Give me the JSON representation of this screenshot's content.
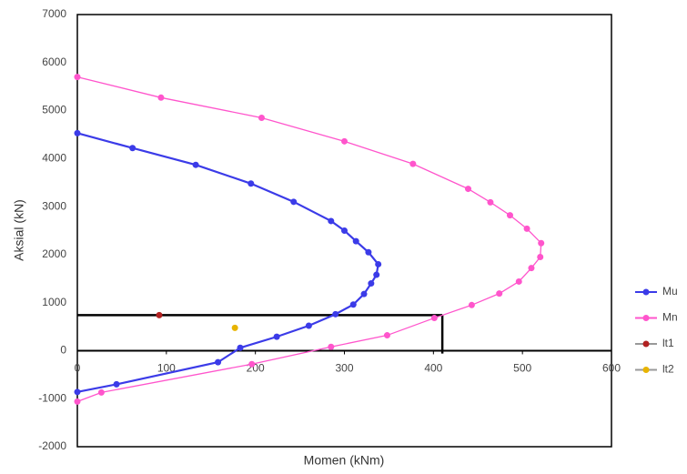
{
  "chart_data": {
    "type": "scatter-line",
    "x_label": "Momen (kNm)",
    "y_label": "Aksial (kN)",
    "xlim": [
      0,
      600
    ],
    "xticks": [
      0,
      100,
      200,
      300,
      400,
      500,
      600
    ],
    "ylim": [
      -2000,
      7000
    ],
    "yticks": [
      -2000,
      -1000,
      0,
      1000,
      2000,
      3000,
      4000,
      5000,
      6000,
      7000
    ],
    "grid": false,
    "legend": "right",
    "series": [
      {
        "name": "Mu",
        "color": "#3b3be8",
        "line": true,
        "x": [
          0,
          62,
          133,
          195,
          243,
          285,
          300,
          313,
          327,
          338,
          336,
          330,
          322,
          310,
          290,
          260,
          224,
          183,
          158,
          44,
          0
        ],
        "y": [
          4530,
          4220,
          3870,
          3480,
          3100,
          2700,
          2500,
          2280,
          2050,
          1800,
          1580,
          1400,
          1180,
          960,
          760,
          520,
          290,
          60,
          -240,
          -700,
          -860
        ]
      },
      {
        "name": "Mn",
        "color": "#ff55cc",
        "line": true,
        "x": [
          0,
          94,
          207,
          300,
          377,
          439,
          464,
          486,
          505,
          521,
          520,
          510,
          496,
          474,
          443,
          401,
          348,
          285,
          196,
          27,
          0
        ],
        "y": [
          5700,
          5270,
          4850,
          4360,
          3890,
          3370,
          3090,
          2820,
          2540,
          2240,
          1950,
          1720,
          1440,
          1190,
          950,
          680,
          320,
          80,
          -280,
          -870,
          -1060
        ]
      },
      {
        "name": "lt1",
        "color": "#b22222",
        "line": false,
        "x": [
          92
        ],
        "y": [
          740
        ]
      },
      {
        "name": "lt2",
        "color": "#e8b400",
        "line": false,
        "x": [
          177
        ],
        "y": [
          475
        ]
      }
    ],
    "reference_lines": [
      {
        "color": "#000000",
        "x": [
          0,
          410
        ],
        "y": [
          740,
          740
        ]
      },
      {
        "color": "#000000",
        "x": [
          410,
          410
        ],
        "y": [
          740,
          -60
        ]
      }
    ]
  }
}
